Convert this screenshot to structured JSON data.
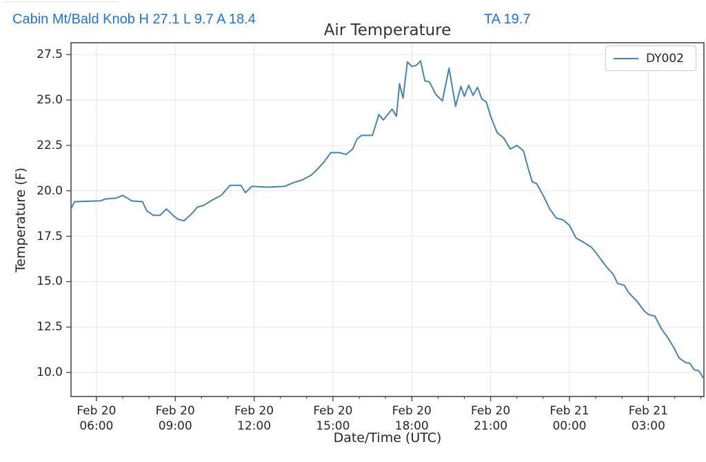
{
  "header": {
    "station_summary": "Cabin Mt/Bald Knob H 27.1 L 9.7 A 18.4",
    "ta_value": "TA 19.7"
  },
  "colors": {
    "header_blue": "#1a73e8",
    "line_blue": "#4682b4",
    "grid_gray": "#e6e6e6",
    "spine_gray": "#3d3d3d",
    "tick_text": "#262626"
  },
  "chart_data": {
    "type": "line",
    "title": "Air Temperature",
    "xlabel": "Date/Time (UTC)",
    "ylabel": "Temperature (F)",
    "grid": true,
    "legend_position": "upper right",
    "legend": [
      {
        "name": "DY002",
        "color": "#4682b4"
      }
    ],
    "y_ticks": [
      10.0,
      12.5,
      15.0,
      17.5,
      20.0,
      22.5,
      25.0,
      27.5
    ],
    "ylim": [
      8.68,
      28.15
    ],
    "xlim_minutes": [
      302,
      1747
    ],
    "x_ticks": [
      {
        "minutes": 360,
        "label": [
          "Feb 20",
          "06:00"
        ]
      },
      {
        "minutes": 540,
        "label": [
          "Feb 20",
          "09:00"
        ]
      },
      {
        "minutes": 720,
        "label": [
          "Feb 20",
          "12:00"
        ]
      },
      {
        "minutes": 900,
        "label": [
          "Feb 20",
          "15:00"
        ]
      },
      {
        "minutes": 1080,
        "label": [
          "Feb 20",
          "18:00"
        ]
      },
      {
        "minutes": 1260,
        "label": [
          "Feb 20",
          "21:00"
        ]
      },
      {
        "minutes": 1440,
        "label": [
          "Feb 21",
          "00:00"
        ]
      },
      {
        "minutes": 1620,
        "label": [
          "Feb 21",
          "03:00"
        ]
      }
    ],
    "x_minor_tick_step_minutes": 60,
    "series": [
      {
        "name": "DY002",
        "color": "#4682b4",
        "points_minutes_tempF": [
          [
            302,
            19.0
          ],
          [
            310,
            19.4
          ],
          [
            370,
            19.45
          ],
          [
            380,
            19.55
          ],
          [
            405,
            19.6
          ],
          [
            420,
            19.75
          ],
          [
            440,
            19.45
          ],
          [
            465,
            19.4
          ],
          [
            475,
            18.9
          ],
          [
            490,
            18.65
          ],
          [
            505,
            18.65
          ],
          [
            520,
            19.0
          ],
          [
            535,
            18.65
          ],
          [
            545,
            18.45
          ],
          [
            560,
            18.35
          ],
          [
            580,
            18.8
          ],
          [
            590,
            19.1
          ],
          [
            605,
            19.2
          ],
          [
            625,
            19.5
          ],
          [
            645,
            19.75
          ],
          [
            665,
            20.3
          ],
          [
            690,
            20.3
          ],
          [
            700,
            19.9
          ],
          [
            715,
            20.25
          ],
          [
            750,
            20.2
          ],
          [
            790,
            20.25
          ],
          [
            810,
            20.45
          ],
          [
            830,
            20.6
          ],
          [
            850,
            20.85
          ],
          [
            865,
            21.2
          ],
          [
            880,
            21.6
          ],
          [
            895,
            22.1
          ],
          [
            915,
            22.1
          ],
          [
            930,
            22.0
          ],
          [
            945,
            22.3
          ],
          [
            955,
            22.85
          ],
          [
            965,
            23.05
          ],
          [
            990,
            23.05
          ],
          [
            1005,
            24.2
          ],
          [
            1015,
            23.9
          ],
          [
            1035,
            24.5
          ],
          [
            1045,
            24.1
          ],
          [
            1052,
            25.9
          ],
          [
            1060,
            25.1
          ],
          [
            1070,
            27.1
          ],
          [
            1080,
            26.85
          ],
          [
            1090,
            26.9
          ],
          [
            1100,
            27.15
          ],
          [
            1110,
            26.05
          ],
          [
            1120,
            26.0
          ],
          [
            1135,
            25.3
          ],
          [
            1150,
            24.95
          ],
          [
            1165,
            26.75
          ],
          [
            1180,
            24.65
          ],
          [
            1192,
            25.75
          ],
          [
            1200,
            25.2
          ],
          [
            1210,
            25.8
          ],
          [
            1220,
            25.25
          ],
          [
            1230,
            25.7
          ],
          [
            1240,
            25.05
          ],
          [
            1250,
            24.9
          ],
          [
            1260,
            24.1
          ],
          [
            1275,
            23.2
          ],
          [
            1290,
            22.9
          ],
          [
            1305,
            22.3
          ],
          [
            1320,
            22.5
          ],
          [
            1335,
            22.2
          ],
          [
            1345,
            21.3
          ],
          [
            1355,
            20.5
          ],
          [
            1365,
            20.4
          ],
          [
            1380,
            19.75
          ],
          [
            1395,
            19.0
          ],
          [
            1410,
            18.5
          ],
          [
            1425,
            18.4
          ],
          [
            1440,
            18.1
          ],
          [
            1455,
            17.4
          ],
          [
            1470,
            17.2
          ],
          [
            1490,
            16.9
          ],
          [
            1500,
            16.6
          ],
          [
            1525,
            15.8
          ],
          [
            1540,
            15.4
          ],
          [
            1550,
            14.9
          ],
          [
            1565,
            14.8
          ],
          [
            1575,
            14.4
          ],
          [
            1595,
            13.9
          ],
          [
            1610,
            13.4
          ],
          [
            1620,
            13.2
          ],
          [
            1635,
            13.1
          ],
          [
            1650,
            12.4
          ],
          [
            1665,
            11.9
          ],
          [
            1680,
            11.3
          ],
          [
            1690,
            10.8
          ],
          [
            1705,
            10.55
          ],
          [
            1715,
            10.5
          ],
          [
            1725,
            10.15
          ],
          [
            1735,
            10.1
          ],
          [
            1747,
            9.65
          ]
        ]
      }
    ]
  }
}
